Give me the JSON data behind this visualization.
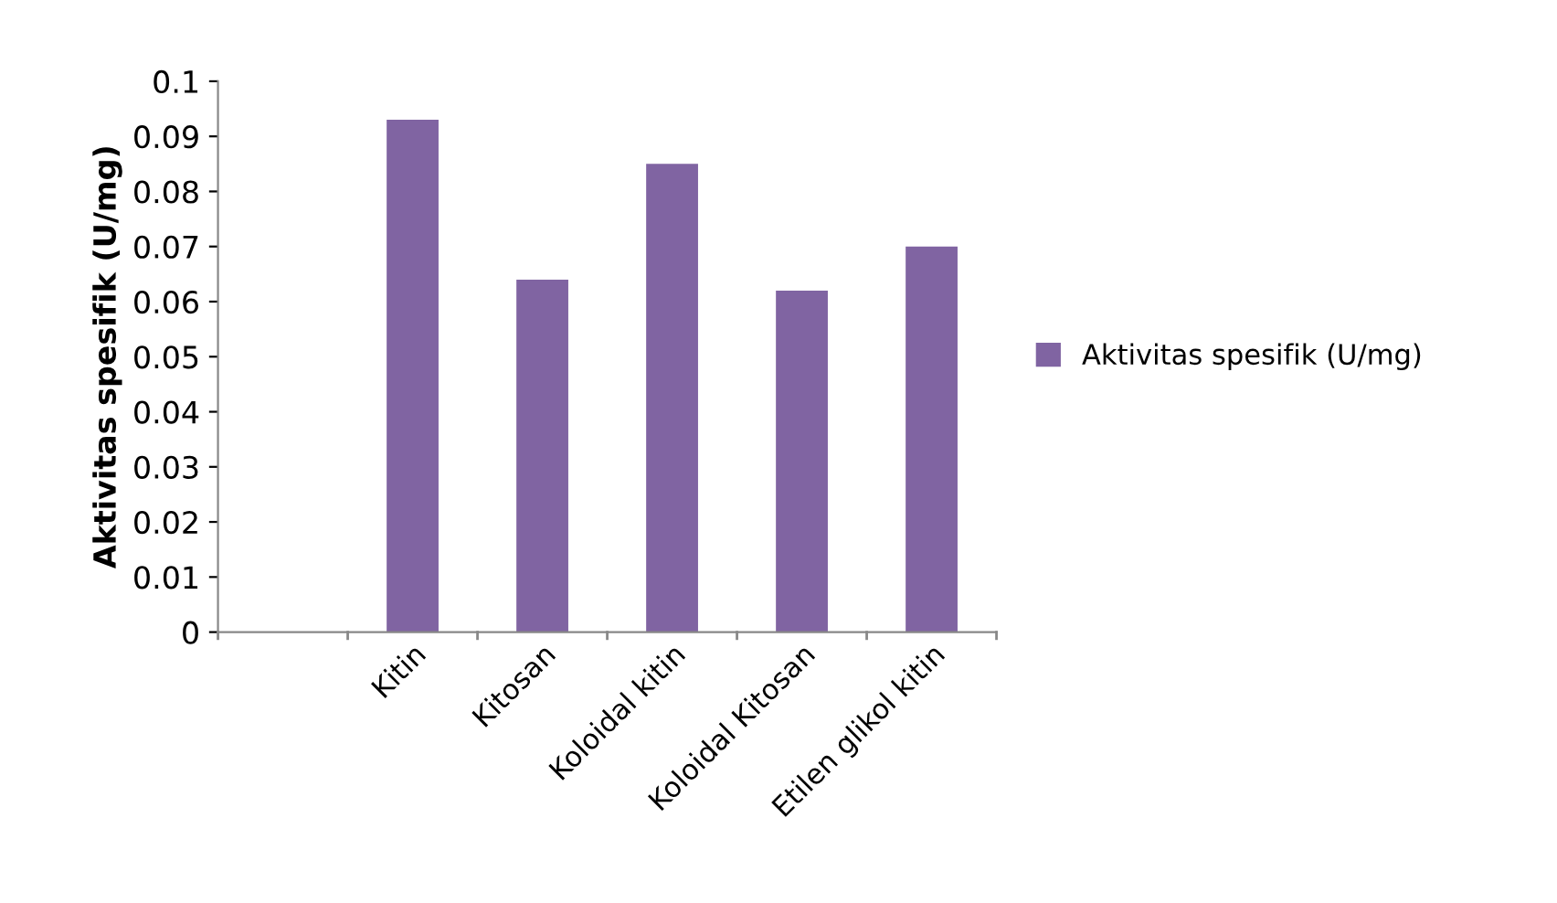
{
  "chart_data": {
    "type": "bar",
    "ylabel": "Aktivitas spesifik (U/mg)",
    "categories": [
      null,
      "Kitin",
      "Kitosan",
      "Koloidal kitin",
      "Koloidal Kitosan",
      "Etilen glikol kitin"
    ],
    "series": [
      {
        "name": "Aktivitas spesifik (U/mg)",
        "color": "#8064a2",
        "values": [
          null,
          0.093,
          0.064,
          0.085,
          0.062,
          0.07
        ]
      }
    ],
    "ylim": [
      0,
      0.1
    ],
    "yticks": [
      0,
      0.01,
      0.02,
      0.03,
      0.04,
      0.05,
      0.06,
      0.07,
      0.08,
      0.09,
      0.1
    ],
    "grid": false,
    "legend": "right"
  }
}
